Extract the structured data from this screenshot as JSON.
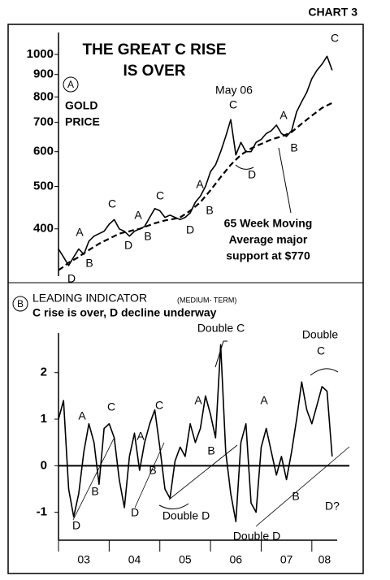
{
  "header": "CHART 3",
  "chart_data": [
    {
      "type": "line",
      "title": [
        "THE GREAT C RISE",
        "IS OVER"
      ],
      "panel_label": "A",
      "y_label": [
        "GOLD",
        "PRICE"
      ],
      "note": [
        "65 Week Moving",
        "Average major",
        "support at $770"
      ],
      "callout": "May 06",
      "annotations": [
        "A",
        "B",
        "D",
        "C",
        "D",
        "A",
        "B",
        "C",
        "D",
        "B",
        "A",
        "C",
        "D",
        "A",
        "B",
        "C"
      ],
      "log_scale": true,
      "xlim": [
        3,
        8.5
      ],
      "ylim": [
        312,
        1122
      ],
      "yticks": [
        400,
        500,
        600,
        700,
        800,
        900,
        1000
      ],
      "x": [
        3.0,
        3.1,
        3.2,
        3.3,
        3.4,
        3.5,
        3.6,
        3.7,
        3.8,
        3.9,
        4.0,
        4.1,
        4.2,
        4.3,
        4.4,
        4.5,
        4.6,
        4.7,
        4.8,
        4.9,
        5.0,
        5.1,
        5.2,
        5.3,
        5.4,
        5.5,
        5.6,
        5.7,
        5.8,
        5.9,
        6.0,
        6.1,
        6.2,
        6.3,
        6.4,
        6.5,
        6.6,
        6.7,
        6.8,
        6.9,
        7.0,
        7.1,
        7.2,
        7.3,
        7.4,
        7.5,
        7.6,
        7.7,
        7.8,
        7.9,
        8.0,
        8.1,
        8.2,
        8.3,
        8.4
      ],
      "series": [
        {
          "color": "#000000",
          "dashed": false,
          "values": [
            360,
            345,
            330,
            345,
            360,
            350,
            375,
            385,
            390,
            395,
            410,
            420,
            400,
            395,
            385,
            395,
            400,
            405,
            425,
            445,
            440,
            425,
            430,
            425,
            420,
            425,
            435,
            460,
            475,
            500,
            540,
            560,
            600,
            650,
            710,
            590,
            630,
            600,
            600,
            630,
            640,
            660,
            670,
            690,
            660,
            650,
            670,
            740,
            780,
            820,
            880,
            920,
            950,
            990,
            920
          ]
        },
        {
          "color": "#000000",
          "dashed": true,
          "values": [
            322,
            328,
            335,
            340,
            345,
            352,
            358,
            364,
            370,
            375,
            380,
            385,
            390,
            393,
            395,
            398,
            400,
            404,
            408,
            412,
            415,
            418,
            420,
            422,
            425,
            432,
            440,
            450,
            460,
            475,
            490,
            507,
            525,
            542,
            560,
            575,
            590,
            600,
            610,
            618,
            625,
            632,
            640,
            645,
            650,
            657,
            665,
            680,
            695,
            710,
            725,
            740,
            755,
            765,
            775
          ]
        }
      ]
    },
    {
      "type": "line",
      "title": "LEADING INDICATOR",
      "subtitle": "(MEDIUM- TERM)",
      "panel_label": "B",
      "note": "C rise is over, D decline underway",
      "annotations": [
        "A",
        "C",
        "B",
        "D",
        "A",
        "C",
        "B",
        "D",
        "A",
        "B",
        "Double C",
        "A",
        "Double",
        "C",
        "B",
        "D?",
        "Double D",
        "Double D"
      ],
      "zero_line": true,
      "xlim": [
        3,
        8.5
      ],
      "xticks": [
        {
          "value": 3,
          "label": "03"
        },
        {
          "value": 4,
          "label": "04"
        },
        {
          "value": 5,
          "label": "05"
        },
        {
          "value": 6,
          "label": "06"
        },
        {
          "value": 7,
          "label": "07"
        },
        {
          "value": 8,
          "label": "08"
        }
      ],
      "ylim": [
        -1.6,
        2.85
      ],
      "yticks": [
        -1,
        0,
        1,
        2
      ],
      "x": [
        3.0,
        3.1,
        3.2,
        3.3,
        3.4,
        3.5,
        3.6,
        3.7,
        3.8,
        3.9,
        4.0,
        4.1,
        4.2,
        4.3,
        4.4,
        4.5,
        4.6,
        4.7,
        4.8,
        4.9,
        5.0,
        5.1,
        5.2,
        5.3,
        5.4,
        5.5,
        5.6,
        5.7,
        5.8,
        5.9,
        6.0,
        6.1,
        6.2,
        6.3,
        6.4,
        6.5,
        6.6,
        6.7,
        6.8,
        6.9,
        7.0,
        7.1,
        7.2,
        7.3,
        7.4,
        7.5,
        7.6,
        7.7,
        7.8,
        7.9,
        8.0,
        8.1,
        8.2,
        8.3,
        8.4
      ],
      "series": [
        {
          "color": "#000000",
          "dashed": false,
          "values": [
            1.0,
            1.4,
            -0.5,
            -1.1,
            -0.6,
            0.3,
            0.9,
            0.5,
            -0.4,
            0.8,
            0.9,
            0.6,
            -0.3,
            -0.9,
            0.2,
            0.7,
            -0.1,
            0.5,
            0.9,
            1.2,
            0.4,
            -0.5,
            -0.7,
            0.1,
            0.4,
            0.2,
            0.9,
            0.5,
            0.8,
            1.5,
            1.1,
            0.6,
            2.6,
            0.3,
            -0.6,
            -1.2,
            0.5,
            0.9,
            -0.8,
            -1.0,
            0.4,
            0.8,
            0.3,
            -0.2,
            0.2,
            -0.3,
            0.3,
            1.0,
            1.8,
            1.2,
            0.9,
            1.3,
            1.7,
            1.6,
            0.2
          ]
        }
      ]
    }
  ]
}
